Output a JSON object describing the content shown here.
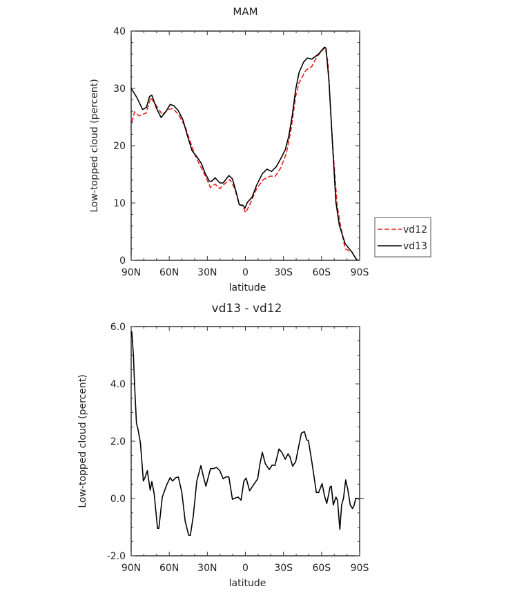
{
  "chart_data": [
    {
      "type": "line",
      "title": "MAM",
      "xlabel": "latitude",
      "ylabel": "Low-topped cloud (percent)",
      "xlim": [
        90,
        -90
      ],
      "ylim": [
        0,
        40
      ],
      "xticks": [
        90,
        60,
        30,
        0,
        -30,
        -60,
        -90
      ],
      "xtick_labels": [
        "90N",
        "60N",
        "30N",
        "0",
        "30S",
        "60S",
        "90S"
      ],
      "yticks": [
        0,
        10,
        20,
        30,
        40
      ],
      "ytick_labels": [
        "0",
        "10",
        "20",
        "30",
        "40"
      ],
      "legend_position": "right",
      "series": [
        {
          "name": "vd12",
          "color": "#e8201c",
          "dash": true,
          "x": [
            89.5,
            87.3,
            83.7,
            78.2,
            74.6,
            69.2,
            65.5,
            61,
            57.4,
            52.8,
            47.4,
            43.8,
            39.2,
            34.7,
            31.1,
            27.5,
            23.8,
            20.2,
            16.6,
            12.1,
            8.4,
            4.8,
            2,
            -0.1,
            -3.4,
            -8.8,
            -14.2,
            -19.7,
            -23.3,
            -27.8,
            -32.3,
            -36,
            -39.6,
            -42.3,
            -47.8,
            -52.3,
            -55.9,
            -60.4,
            -62.8,
            -65,
            -68.6,
            -72.2,
            -74.9,
            -78.6,
            -84,
            -87.6
          ],
          "y": [
            24.1,
            25.9,
            25.2,
            25.7,
            28.4,
            26.7,
            25.4,
            26.3,
            26.5,
            25.5,
            23.3,
            20.9,
            18.1,
            16.1,
            14.5,
            12.7,
            13.3,
            12.5,
            13.3,
            14.1,
            12.5,
            9.7,
            9.5,
            8.3,
            9.7,
            12.5,
            14.1,
            14.7,
            14.6,
            16.1,
            18.7,
            22.9,
            28.6,
            31.0,
            33.2,
            33.8,
            35.4,
            36.6,
            37.1,
            34.6,
            20.5,
            9.7,
            6.1,
            2.0,
            1.4,
            0
          ]
        },
        {
          "name": "vd13",
          "color": "#000000",
          "dash": false,
          "x": [
            90,
            85.5,
            81,
            78,
            75.5,
            73.7,
            70,
            66.4,
            62.8,
            59.2,
            56.5,
            52.8,
            49.2,
            45.6,
            42,
            38.3,
            34.7,
            32,
            28.4,
            26.6,
            23.8,
            20.2,
            17.5,
            13,
            10.2,
            7.5,
            4.8,
            2,
            0.3,
            -1.5,
            -5.2,
            -8.8,
            -13.3,
            -16.9,
            -20.6,
            -24.2,
            -27.8,
            -31.4,
            -34.2,
            -36.9,
            -39.6,
            -42.3,
            -45.9,
            -48.7,
            -52.3,
            -57.7,
            -62.3,
            -63.5,
            -65.9,
            -68.6,
            -71.3,
            -74,
            -78.6,
            -84,
            -87.6,
            -89.4
          ],
          "y": [
            30.0,
            28.4,
            26.3,
            26.7,
            28.6,
            28.8,
            26.5,
            24.9,
            25.9,
            27.2,
            27.0,
            26.1,
            24.5,
            21.7,
            19.1,
            18.1,
            16.9,
            15.3,
            13.8,
            13.8,
            14.4,
            13.5,
            13.5,
            14.8,
            14.2,
            12.1,
            9.7,
            9.6,
            9.1,
            10.1,
            11.0,
            13.1,
            15.1,
            15.9,
            15.5,
            16.3,
            17.7,
            19.3,
            21.7,
            25.3,
            29.8,
            32.8,
            34.6,
            35.3,
            35.1,
            36.0,
            37.2,
            37.0,
            31.0,
            20.5,
            10.1,
            6.1,
            2.9,
            1.4,
            0.1,
            0
          ]
        }
      ]
    },
    {
      "type": "line",
      "title": "vd13 - vd12",
      "xlabel": "latitude",
      "ylabel": "Low-topped cloud (percent)",
      "xlim": [
        90,
        -90
      ],
      "ylim": [
        -2,
        6
      ],
      "xticks": [
        90,
        60,
        30,
        0,
        -30,
        -60,
        -90
      ],
      "xtick_labels": [
        "90N",
        "60N",
        "30N",
        "0",
        "30S",
        "60S",
        "90S"
      ],
      "yticks": [
        -2,
        0,
        2,
        4,
        6
      ],
      "ytick_labels": [
        "-2.0",
        "0.0",
        "2.0",
        "4.0",
        "6.0"
      ],
      "series": [
        {
          "name": "vd13 - vd12",
          "color": "#000000",
          "dash": false,
          "x": [
            89.5,
            88.2,
            87.3,
            85.8,
            84.6,
            82.7,
            80.4,
            79.1,
            77.3,
            75,
            73.7,
            71.9,
            69.2,
            68.2,
            65.5,
            61.9,
            59.2,
            57.4,
            54.7,
            52.8,
            50.1,
            47.4,
            44.7,
            43.4,
            41.1,
            38.3,
            35.1,
            32.9,
            31.1,
            27.5,
            24.7,
            22.9,
            20.2,
            17.5,
            15.1,
            13,
            10.2,
            8.4,
            5.7,
            3.4,
            1.2,
            -0.6,
            -3.3,
            -6,
            -9.7,
            -11.5,
            -13.3,
            -15.7,
            -18.8,
            -21.1,
            -23.3,
            -26.5,
            -28.7,
            -31.4,
            -33.6,
            -35.1,
            -37.2,
            -39.6,
            -41.4,
            -44.1,
            -46.5,
            -48.3,
            -49.6,
            -52.3,
            -55.9,
            -57.7,
            -60.4,
            -62.3,
            -64.1,
            -66.8,
            -67.7,
            -69.2,
            -71.3,
            -72.6,
            -74.4,
            -75.8,
            -77.3,
            -79,
            -80.6,
            -82.6,
            -84.4,
            -85.7,
            -86.9,
            -89.4
          ],
          "y": [
            5.83,
            4.99,
            3.94,
            2.62,
            2.42,
            1.94,
            0.61,
            0.73,
            0.97,
            0.29,
            0.59,
            0.17,
            -1.04,
            -1.04,
            0.05,
            0.49,
            0.73,
            0.61,
            0.73,
            0.75,
            0.21,
            -0.8,
            -1.28,
            -1.29,
            -0.63,
            0.61,
            1.15,
            0.73,
            0.43,
            1.04,
            1.05,
            1.09,
            0.97,
            0.69,
            0.76,
            0.75,
            -0.03,
            0.01,
            0.05,
            -0.06,
            0.61,
            0.71,
            0.27,
            0.45,
            0.69,
            1.21,
            1.61,
            1.21,
            1.01,
            1.17,
            1.15,
            1.73,
            1.61,
            1.37,
            1.56,
            1.45,
            1.13,
            1.28,
            1.69,
            2.28,
            2.34,
            2.04,
            2.03,
            1.29,
            0.21,
            0.21,
            0.52,
            0.09,
            -0.17,
            0.41,
            0.43,
            -0.23,
            0.05,
            -0.07,
            -1.08,
            -0.23,
            0.01,
            0.65,
            0.33,
            -0.23,
            -0.35,
            -0.23,
            0.01,
            -0.02
          ]
        }
      ]
    }
  ]
}
